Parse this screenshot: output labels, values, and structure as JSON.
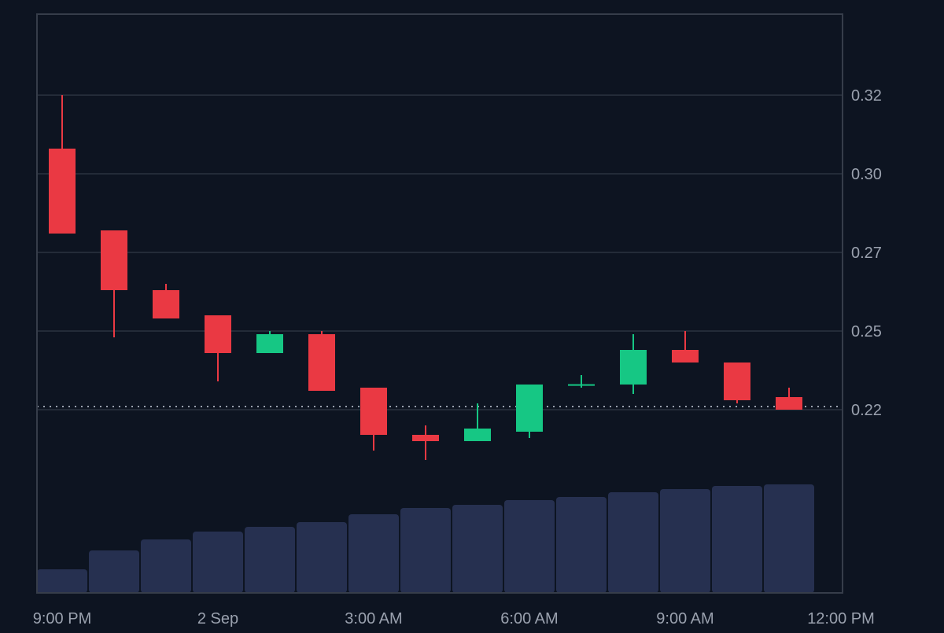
{
  "colors": {
    "background": "#0d1421",
    "grid": "#232b38",
    "border": "#363d4a",
    "axis_text": "#9aa1ae",
    "up": "#16c784",
    "down": "#ea3943",
    "volume": "#263050",
    "last_price_line": "#9aa1ae"
  },
  "chart_data": {
    "type": "candlestick",
    "title": "",
    "xlabel": "",
    "ylabel": "",
    "interval": "1h",
    "ylim": [
      0.1985,
      0.3475
    ],
    "y_ticks": [
      {
        "label": "0.32",
        "value": 0.32
      },
      {
        "label": "0.30",
        "value": 0.295
      },
      {
        "label": "0.27",
        "value": 0.27
      },
      {
        "label": "0.25",
        "value": 0.245
      },
      {
        "label": "0.22",
        "value": 0.22
      }
    ],
    "x_ticks": [
      {
        "label": "9:00 PM",
        "index": 0
      },
      {
        "label": "2 Sep",
        "index": 3
      },
      {
        "label": "3:00 AM",
        "index": 6
      },
      {
        "label": "6:00 AM",
        "index": 9
      },
      {
        "label": "9:00 AM",
        "index": 12
      },
      {
        "label": "12:00 PM",
        "index": 15
      }
    ],
    "last_price": 0.221,
    "grid": true,
    "legend": "none",
    "candles": [
      {
        "time": "9:00 PM",
        "open": 0.303,
        "high": 0.32,
        "low": 0.276,
        "close": 0.276,
        "volume": 30
      },
      {
        "time": "10:00 PM",
        "open": 0.277,
        "high": 0.277,
        "low": 0.243,
        "close": 0.258,
        "volume": 54
      },
      {
        "time": "11:00 PM",
        "open": 0.258,
        "high": 0.26,
        "low": 0.249,
        "close": 0.249,
        "volume": 68
      },
      {
        "time": "12:00 AM",
        "open": 0.25,
        "high": 0.25,
        "low": 0.229,
        "close": 0.238,
        "volume": 78
      },
      {
        "time": "1:00 AM",
        "open": 0.238,
        "high": 0.245,
        "low": 0.238,
        "close": 0.244,
        "volume": 84
      },
      {
        "time": "2:00 AM",
        "open": 0.244,
        "high": 0.245,
        "low": 0.226,
        "close": 0.226,
        "volume": 90
      },
      {
        "time": "3:00 AM",
        "open": 0.227,
        "high": 0.227,
        "low": 0.207,
        "close": 0.212,
        "volume": 100
      },
      {
        "time": "4:00 AM",
        "open": 0.212,
        "high": 0.215,
        "low": 0.204,
        "close": 0.21,
        "volume": 108
      },
      {
        "time": "5:00 AM",
        "open": 0.21,
        "high": 0.222,
        "low": 0.21,
        "close": 0.214,
        "volume": 112
      },
      {
        "time": "6:00 AM",
        "open": 0.213,
        "high": 0.228,
        "low": 0.211,
        "close": 0.228,
        "volume": 118
      },
      {
        "time": "7:00 AM",
        "open": 0.228,
        "high": 0.231,
        "low": 0.227,
        "close": 0.2281,
        "volume": 122
      },
      {
        "time": "8:00 AM",
        "open": 0.228,
        "high": 0.244,
        "low": 0.225,
        "close": 0.239,
        "volume": 128
      },
      {
        "time": "9:00 AM",
        "open": 0.239,
        "high": 0.245,
        "low": 0.235,
        "close": 0.235,
        "volume": 132
      },
      {
        "time": "10:00 AM",
        "open": 0.235,
        "high": 0.235,
        "low": 0.222,
        "close": 0.223,
        "volume": 136
      },
      {
        "time": "11:00 AM",
        "open": 0.224,
        "high": 0.227,
        "low": 0.22,
        "close": 0.22,
        "volume": 138
      }
    ]
  }
}
